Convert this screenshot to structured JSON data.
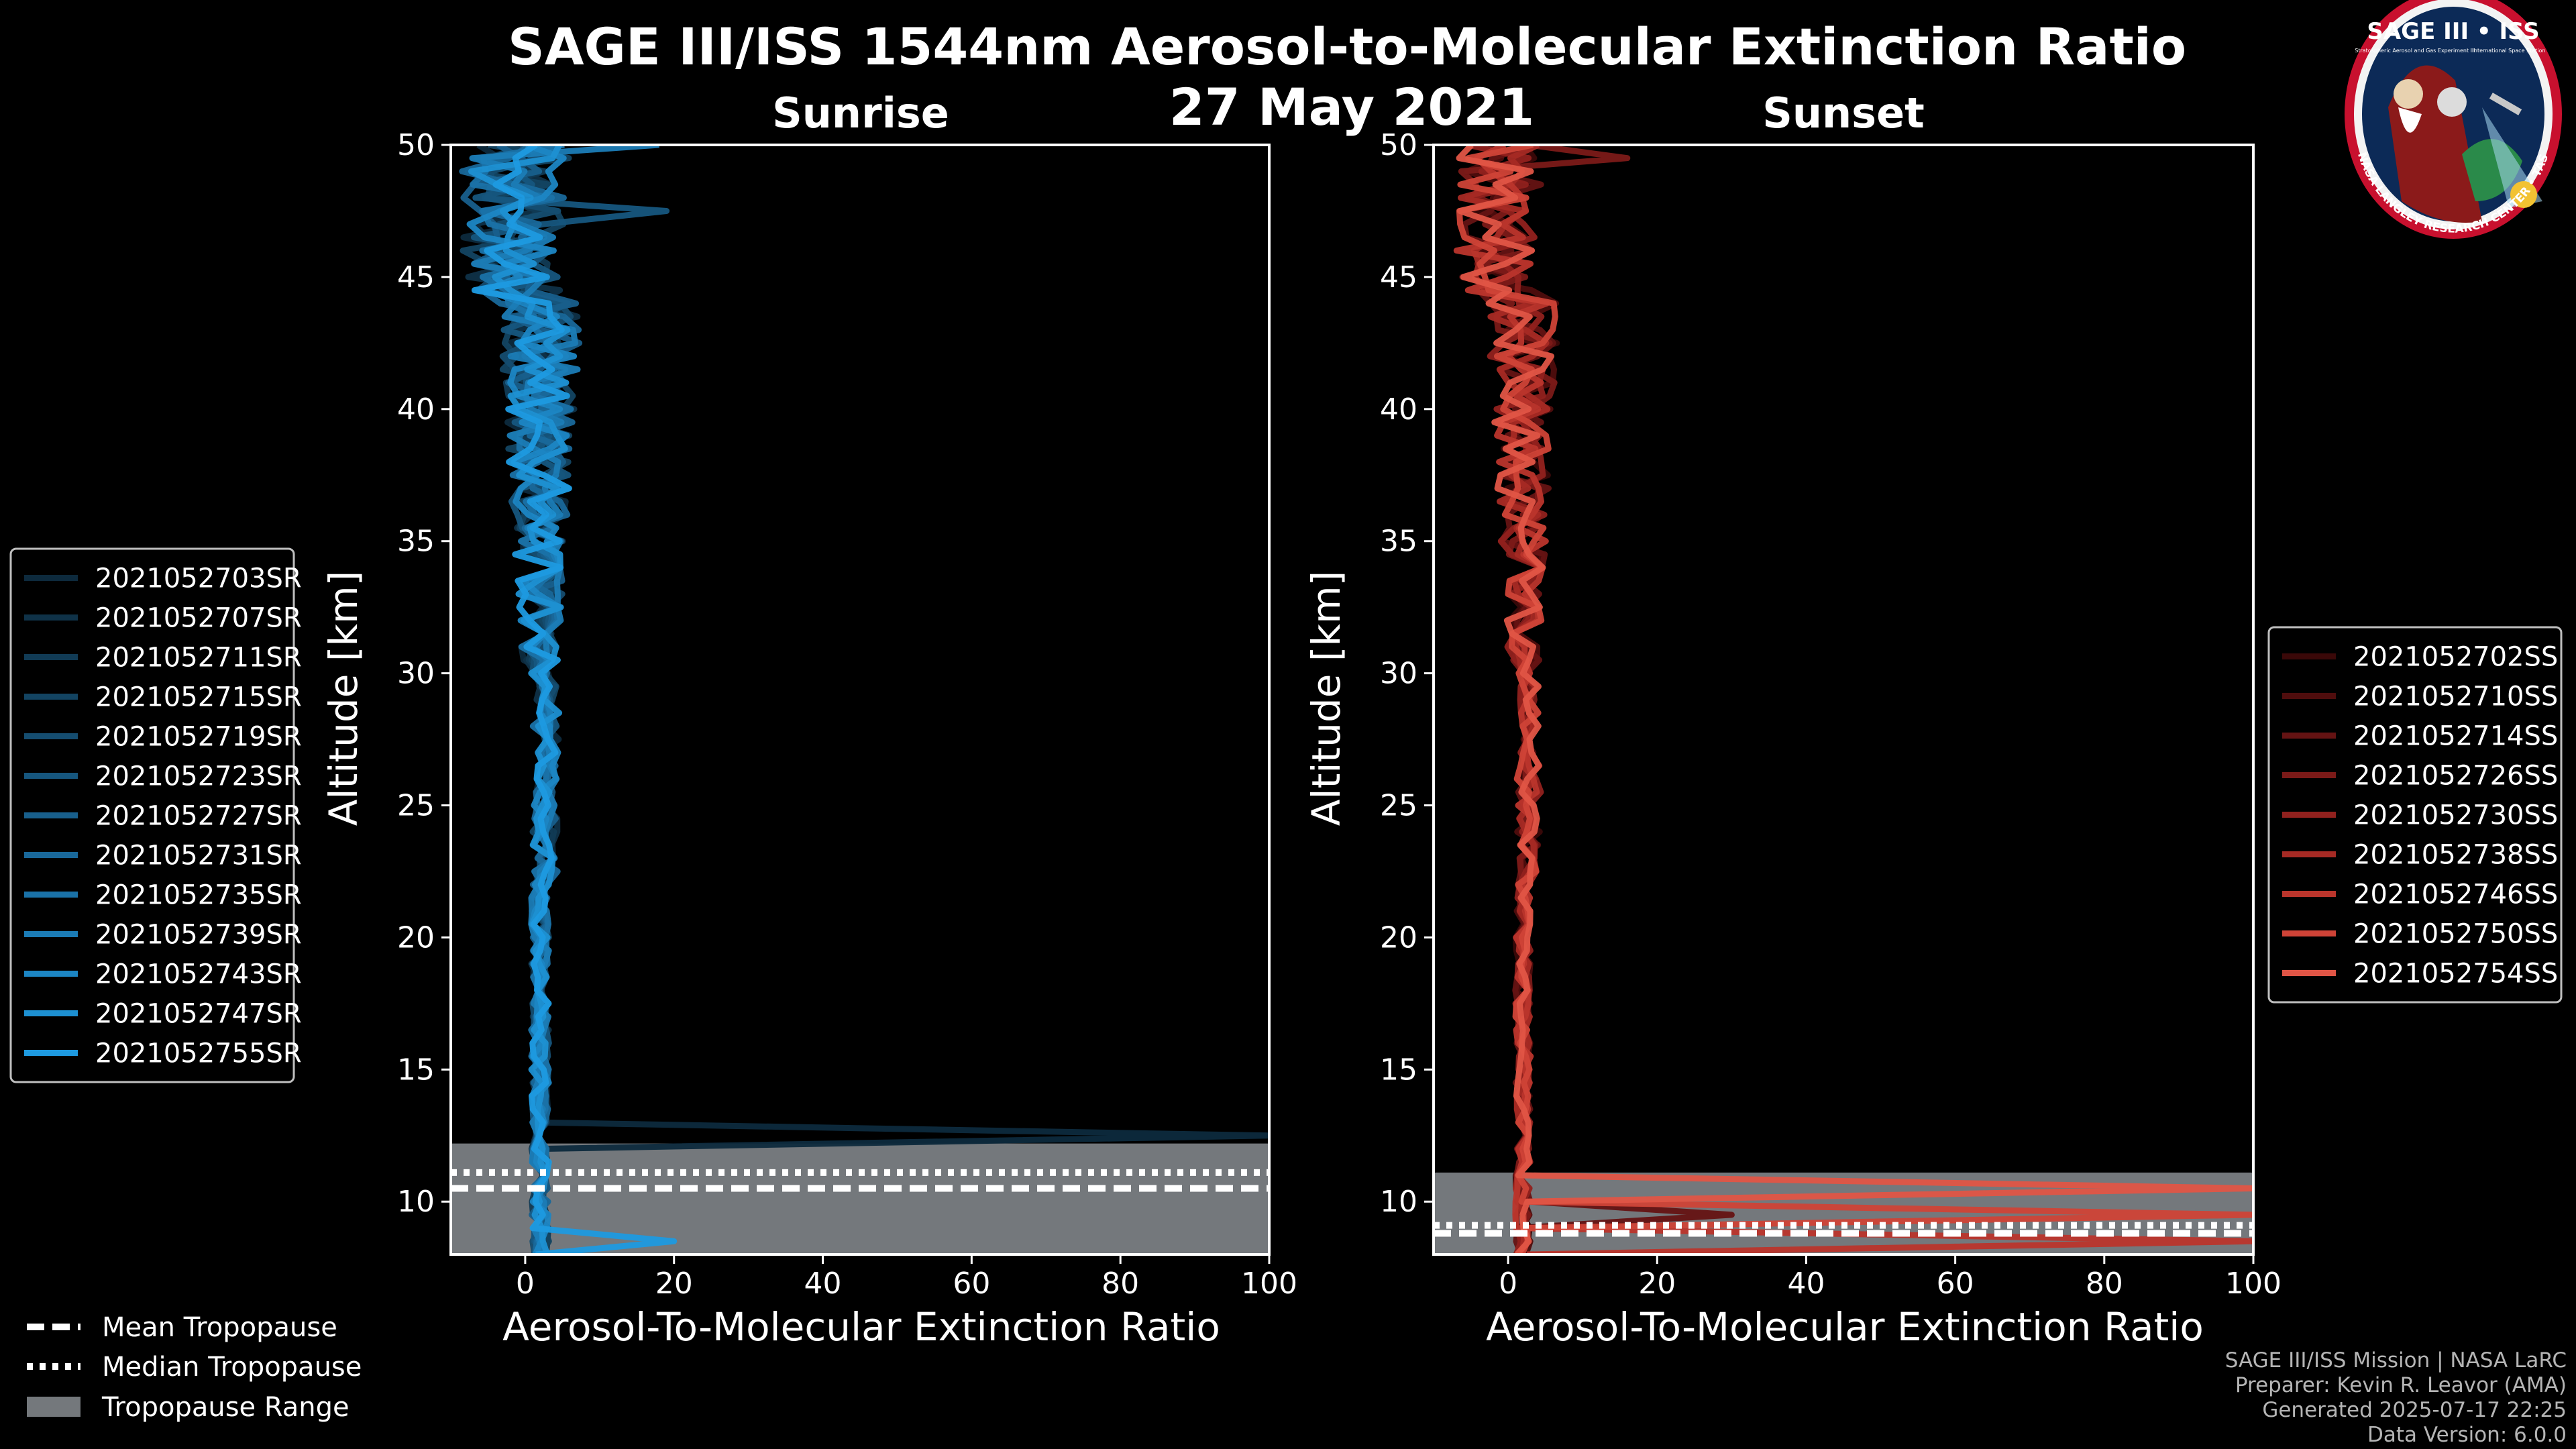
{
  "figure": {
    "title": "SAGE III/ISS 1544nm Aerosol-to-Molecular Extinction Ratio",
    "date": "27 May 2021"
  },
  "logo": {
    "title": "SAGE III • ISS",
    "subtitle_left": "Stratospheric Aerosol and Gas Experiment III",
    "subtitle_right": "International Space Station",
    "ring_text": "BALL • NASA LANGLEY RESEARCH CENTER • TAS-I • ESA"
  },
  "colors": {
    "sunrise": [
      "#0d2a3d",
      "#0f3248",
      "#113b55",
      "#134462",
      "#154d70",
      "#16567e",
      "#185f8c",
      "#19689a",
      "#1a72a8",
      "#1b7cb6",
      "#1c86c4",
      "#1d90d2",
      "#1e9ae0"
    ],
    "sunset": [
      "#3a0808",
      "#4f0d0d",
      "#651313",
      "#7b1a18",
      "#91211e",
      "#a62a24",
      "#bb352c",
      "#cf4337",
      "#e05546"
    ],
    "tropo_fill": "#74787c",
    "frame": "#ffffff"
  },
  "legend_tropopause": [
    {
      "label": "Mean Tropopause",
      "style": "dashed"
    },
    {
      "label": "Median Tropopause",
      "style": "dotted"
    },
    {
      "label": "Tropopause Range",
      "style": "patch"
    }
  ],
  "credits": [
    "SAGE III/ISS Mission | NASA LaRC",
    "Preparer: Kevin R. Leavor (AMA)",
    "Generated 2025-07-17 22:25",
    "Data Version: 6.0.0"
  ],
  "chart_data": [
    {
      "type": "line",
      "id": "sunrise",
      "title": "Sunrise",
      "xlabel": "Aerosol-To-Molecular Extinction Ratio",
      "ylabel": "Altitude [km]",
      "xlim": [
        -10,
        100
      ],
      "ylim": [
        8,
        50
      ],
      "xticks": [
        0,
        20,
        40,
        60,
        80,
        100
      ],
      "yticks": [
        10,
        15,
        20,
        25,
        30,
        35,
        40,
        45,
        50
      ],
      "tropopause": {
        "mean": 10.5,
        "median": 11.1,
        "range": [
          8.0,
          12.2
        ]
      },
      "series": [
        {
          "name": "2021052703SR",
          "seed": 3
        },
        {
          "name": "2021052707SR",
          "seed": 7
        },
        {
          "name": "2021052711SR",
          "seed": 11
        },
        {
          "name": "2021052715SR",
          "seed": 15
        },
        {
          "name": "2021052719SR",
          "seed": 19
        },
        {
          "name": "2021052723SR",
          "seed": 23
        },
        {
          "name": "2021052727SR",
          "seed": 27
        },
        {
          "name": "2021052731SR",
          "seed": 31
        },
        {
          "name": "2021052735SR",
          "seed": 35
        },
        {
          "name": "2021052739SR",
          "seed": 39
        },
        {
          "name": "2021052743SR",
          "seed": 43
        },
        {
          "name": "2021052747SR",
          "seed": 47
        },
        {
          "name": "2021052755SR",
          "seed": 55
        }
      ],
      "profile_model": {
        "base_ratio": 2.0,
        "upper_noise": 7.0,
        "lower_noise": 1.5,
        "spikes": [
          {
            "series": 0,
            "alt": 12.4,
            "to_ratio": 100
          },
          {
            "series": 12,
            "alt": 8.3,
            "to_ratio": 20
          },
          {
            "series": 5,
            "alt": 47.5,
            "to_ratio": 19
          },
          {
            "series": 9,
            "alt": 49.9,
            "to_ratio": 18
          }
        ]
      }
    },
    {
      "type": "line",
      "id": "sunset",
      "title": "Sunset",
      "xlabel": "Aerosol-To-Molecular Extinction Ratio",
      "ylabel": "Altitude [km]",
      "xlim": [
        -10,
        100
      ],
      "ylim": [
        8,
        50
      ],
      "xticks": [
        0,
        20,
        40,
        60,
        80,
        100
      ],
      "yticks": [
        10,
        15,
        20,
        25,
        30,
        35,
        40,
        45,
        50
      ],
      "tropopause": {
        "mean": 8.8,
        "median": 9.1,
        "range": [
          8.0,
          11.1
        ]
      },
      "series": [
        {
          "name": "2021052702SS",
          "seed": 2
        },
        {
          "name": "2021052710SS",
          "seed": 10
        },
        {
          "name": "2021052714SS",
          "seed": 14
        },
        {
          "name": "2021052726SS",
          "seed": 26
        },
        {
          "name": "2021052730SS",
          "seed": 30
        },
        {
          "name": "2021052738SS",
          "seed": 38
        },
        {
          "name": "2021052746SS",
          "seed": 46
        },
        {
          "name": "2021052750SS",
          "seed": 50
        },
        {
          "name": "2021052754SS",
          "seed": 54
        }
      ],
      "profile_model": {
        "base_ratio": 2.0,
        "upper_noise": 6.0,
        "lower_noise": 1.3,
        "spikes": [
          {
            "series": 8,
            "alt": 10.3,
            "to_ratio": 100
          },
          {
            "series": 7,
            "alt": 9.7,
            "to_ratio": 100
          },
          {
            "series": 2,
            "alt": 9.4,
            "to_ratio": 30
          },
          {
            "series": 6,
            "alt": 8.3,
            "to_ratio": 100
          },
          {
            "series": 3,
            "alt": 49.5,
            "to_ratio": 16
          }
        ]
      }
    }
  ]
}
